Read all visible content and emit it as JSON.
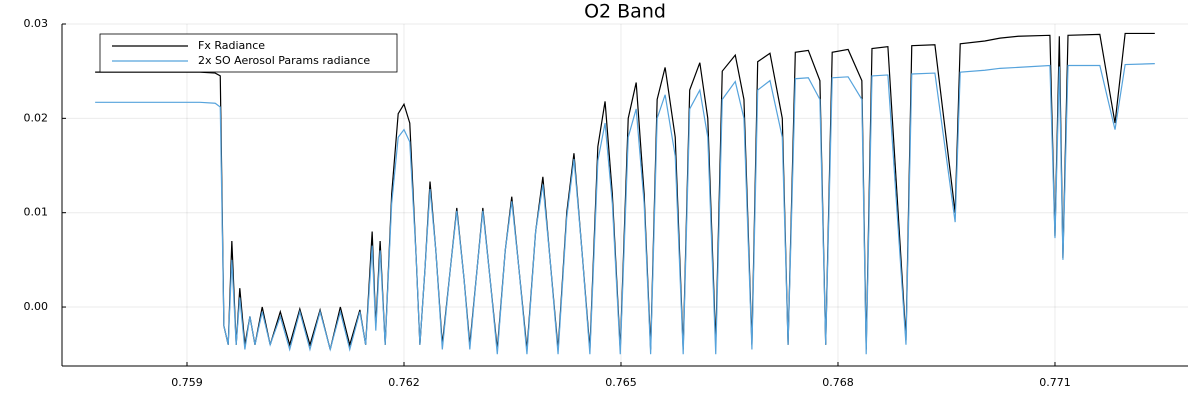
{
  "chart_data": {
    "type": "line",
    "title": "O2 Band",
    "x": [
      0.75773,
      0.75849,
      0.75918,
      0.75939,
      0.75946,
      0.75951,
      0.75957,
      0.75962,
      0.75968,
      0.75973,
      0.7598,
      0.75987,
      0.75994,
      0.76004,
      0.76015,
      0.76029,
      0.76042,
      0.76056,
      0.7607,
      0.76084,
      0.76098,
      0.76112,
      0.76125,
      0.76139,
      0.76147,
      0.76156,
      0.76161,
      0.76167,
      0.76174,
      0.76183,
      0.76192,
      0.762,
      0.76208,
      0.76217,
      0.76222,
      0.76229,
      0.76236,
      0.76244,
      0.76253,
      0.76264,
      0.76273,
      0.76283,
      0.76291,
      0.76301,
      0.76309,
      0.76319,
      0.76329,
      0.7634,
      0.76349,
      0.76359,
      0.7637,
      0.76382,
      0.76392,
      0.76402,
      0.76413,
      0.76425,
      0.76435,
      0.76446,
      0.76457,
      0.76468,
      0.76478,
      0.76488,
      0.76499,
      0.7651,
      0.76521,
      0.76532,
      0.76541,
      0.7655,
      0.76561,
      0.76575,
      0.76586,
      0.76595,
      0.76609,
      0.7662,
      0.76631,
      0.7664,
      0.76658,
      0.7667,
      0.76681,
      0.76689,
      0.76706,
      0.76723,
      0.76731,
      0.76741,
      0.76759,
      0.76775,
      0.76783,
      0.76792,
      0.76814,
      0.76833,
      0.76839,
      0.76847,
      0.76869,
      0.76894,
      0.76902,
      0.76934,
      0.76962,
      0.76969,
      0.77003,
      0.77024,
      0.77049,
      0.77093,
      0.771,
      0.77106,
      0.77111,
      0.77118,
      0.77162,
      0.77183,
      0.77197,
      0.77238
    ],
    "series": [
      {
        "name": "Fx Radiance",
        "color": "#000000",
        "values": [
          0.0249,
          0.0249,
          0.0249,
          0.0248,
          0.0245,
          -0.002,
          -0.004,
          0.007,
          -0.004,
          0.002,
          -0.004,
          -0.001,
          -0.004,
          0,
          -0.004,
          -0.0005,
          -0.004,
          -0.0002,
          -0.004,
          -0.0003,
          -0.0045,
          0,
          -0.004,
          -0.0003,
          -0.004,
          0.008,
          -0.002,
          0.007,
          -0.004,
          0.012,
          0.0205,
          0.0215,
          0.0195,
          0.005,
          -0.004,
          0.004,
          0.0133,
          0.006,
          -0.004,
          0.004,
          0.0105,
          0.003,
          -0.004,
          0.004,
          0.0105,
          0.003,
          -0.0045,
          0.006,
          0.0117,
          0.004,
          -0.0045,
          0.008,
          0.0138,
          0.005,
          -0.0045,
          0.01,
          0.0163,
          0.006,
          -0.0045,
          0.017,
          0.0218,
          0.012,
          -0.0045,
          0.02,
          0.0238,
          0.012,
          -0.0045,
          0.022,
          0.0254,
          0.018,
          -0.0045,
          0.023,
          0.0259,
          0.02,
          -0.004,
          0.025,
          0.0267,
          0.022,
          -0.004,
          0.026,
          0.0269,
          0.02,
          -0.004,
          0.027,
          0.0272,
          0.024,
          -0.004,
          0.027,
          0.0273,
          0.024,
          -0.0045,
          0.0274,
          0.0276,
          -0.0035,
          0.0277,
          0.0278,
          0.01,
          0.0279,
          0.0282,
          0.0285,
          0.0287,
          0.0288,
          0.0075,
          0.0287,
          0.0052,
          0.0288,
          0.0289,
          0.0195,
          0.029,
          0.029
        ]
      },
      {
        "name": "2x SO Aerosol Params radiance",
        "color": "#56a3dc",
        "values": [
          0.0217,
          0.0217,
          0.0217,
          0.0216,
          0.0212,
          -0.002,
          -0.004,
          0.005,
          -0.004,
          0.001,
          -0.0045,
          -0.001,
          -0.004,
          -0.0005,
          -0.004,
          -0.001,
          -0.0045,
          -0.0005,
          -0.0045,
          -0.0005,
          -0.0045,
          -0.0005,
          -0.0045,
          -0.0005,
          -0.004,
          0.0065,
          -0.0025,
          0.006,
          -0.004,
          0.011,
          0.018,
          0.0188,
          0.0175,
          0.005,
          -0.004,
          0.004,
          0.0125,
          0.006,
          -0.0045,
          0.004,
          0.0102,
          0.003,
          -0.0045,
          0.004,
          0.0102,
          0.003,
          -0.005,
          0.006,
          0.0112,
          0.004,
          -0.005,
          0.008,
          0.013,
          0.005,
          -0.005,
          0.0095,
          0.0157,
          0.006,
          -0.005,
          0.0155,
          0.0195,
          0.011,
          -0.005,
          0.018,
          0.021,
          0.011,
          -0.005,
          0.02,
          0.0225,
          0.016,
          -0.005,
          0.021,
          0.023,
          0.018,
          -0.005,
          0.022,
          0.0239,
          0.02,
          -0.0045,
          0.023,
          0.024,
          0.018,
          -0.004,
          0.0242,
          0.0243,
          0.022,
          -0.004,
          0.0243,
          0.0244,
          0.022,
          -0.005,
          0.0245,
          0.0246,
          -0.004,
          0.0247,
          0.0248,
          0.009,
          0.0249,
          0.0251,
          0.0253,
          0.0254,
          0.0256,
          0.0073,
          0.0255,
          0.005,
          0.0256,
          0.0256,
          0.0188,
          0.0257,
          0.0258
        ]
      }
    ],
    "xlim": [
      0.757272,
      0.772839
    ],
    "xticks": [
      0.759,
      0.762,
      0.765,
      0.768,
      0.771
    ],
    "ylim": [
      -0.00625,
      0.03
    ],
    "yticks": [
      {
        "value": 0,
        "label": "0.00"
      },
      {
        "value": 0.01,
        "label": "0.01"
      },
      {
        "value": 0.02,
        "label": "0.02"
      },
      {
        "value": 0.03,
        "label": "0.03"
      }
    ],
    "grid": true,
    "legend": "top-left"
  }
}
